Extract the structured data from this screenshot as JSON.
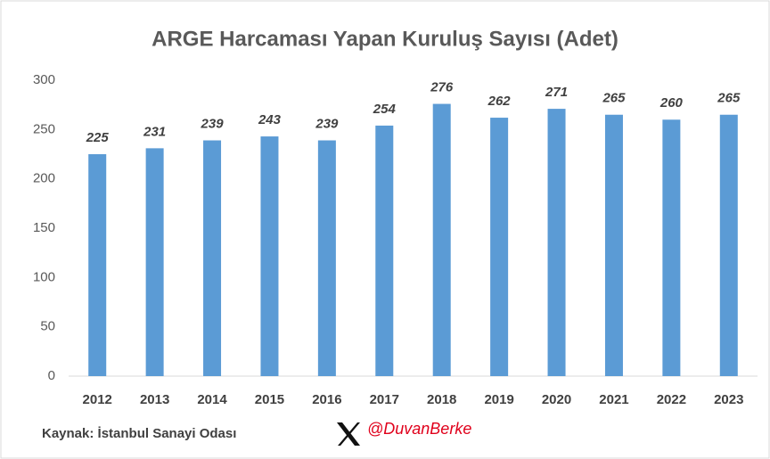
{
  "chart_data": {
    "type": "bar",
    "title": "ARGE Harcaması Yapan Kuruluş Sayısı (Adet)",
    "categories": [
      "2012",
      "2013",
      "2014",
      "2015",
      "2016",
      "2017",
      "2018",
      "2019",
      "2020",
      "2021",
      "2022",
      "2023"
    ],
    "values": [
      225,
      231,
      239,
      243,
      239,
      254,
      276,
      262,
      271,
      265,
      260,
      265
    ],
    "color": "#5b9bd5",
    "ylim": [
      0,
      300
    ],
    "yticks": [
      0,
      50,
      100,
      150,
      200,
      250,
      300
    ],
    "grid": false
  },
  "source": "Kaynak: İstanbul Sanayi Odası",
  "credit": "@DuvanBerke"
}
